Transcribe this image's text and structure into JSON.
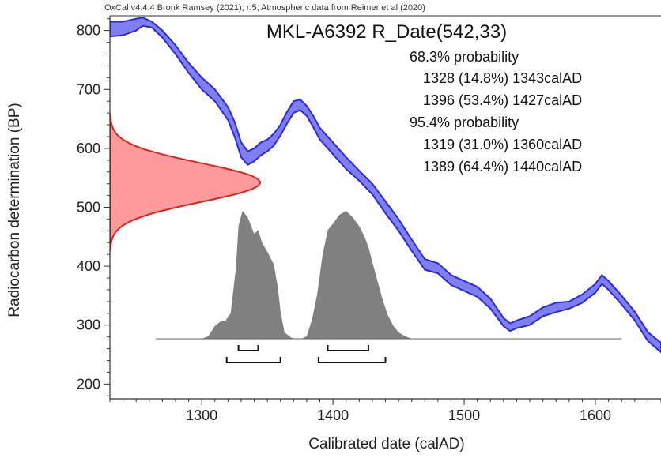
{
  "header": "OxCal v4.4.4 Bronk Ramsey (2021); r:5; Atmospheric data from Reimer et al (2020)",
  "chart_data": {
    "type": "area",
    "title": "MKL-A6392 R_Date(542,33)",
    "xlabel": "Calibrated date (calAD)",
    "ylabel": "Radiocarbon determination (BP)",
    "xlim": [
      1230,
      1650
    ],
    "ylim": [
      175,
      825
    ],
    "x_ticks": [
      1300,
      1400,
      1500,
      1600
    ],
    "y_ticks": [
      200,
      300,
      400,
      500,
      600,
      700,
      800
    ],
    "grid": false,
    "results": {
      "p68_label": "68.3% probability",
      "p68": [
        "1328 (14.8%) 1343calAD",
        "1396 (53.4%) 1427calAD"
      ],
      "p95_label": "95.4% probability",
      "p95": [
        "1319 (31.0%) 1360calAD",
        "1389 (64.4%) 1440calAD"
      ]
    },
    "calibration_curve": {
      "colors": {
        "fill": "#7f7ff2",
        "stroke": "#2b2bd6"
      },
      "x": [
        1230,
        1240,
        1250,
        1255,
        1262,
        1270,
        1280,
        1290,
        1300,
        1310,
        1320,
        1325,
        1330,
        1335,
        1340,
        1345,
        1350,
        1355,
        1360,
        1365,
        1370,
        1375,
        1380,
        1385,
        1390,
        1400,
        1410,
        1420,
        1430,
        1440,
        1450,
        1460,
        1470,
        1480,
        1490,
        1500,
        1510,
        1520,
        1530,
        1535,
        1540,
        1550,
        1560,
        1570,
        1580,
        1590,
        1600,
        1605,
        1610,
        1620,
        1630,
        1640,
        1650
      ],
      "upper": [
        815,
        815,
        820,
        822,
        815,
        800,
        775,
        745,
        720,
        700,
        670,
        645,
        610,
        595,
        600,
        610,
        615,
        625,
        640,
        662,
        680,
        683,
        672,
        655,
        635,
        610,
        585,
        562,
        540,
        510,
        480,
        445,
        412,
        405,
        385,
        375,
        365,
        345,
        312,
        303,
        308,
        315,
        330,
        338,
        340,
        352,
        370,
        385,
        375,
        350,
        323,
        288,
        270
      ],
      "lower": [
        790,
        792,
        800,
        808,
        805,
        788,
        760,
        728,
        700,
        680,
        648,
        620,
        585,
        572,
        578,
        588,
        595,
        605,
        622,
        642,
        660,
        665,
        655,
        636,
        615,
        590,
        565,
        545,
        522,
        490,
        460,
        426,
        394,
        388,
        368,
        358,
        348,
        328,
        298,
        290,
        295,
        300,
        315,
        322,
        328,
        338,
        355,
        370,
        360,
        335,
        308,
        273,
        254
      ]
    },
    "radiocarbon_date": {
      "mean_bp": 542,
      "sigma_bp": 33,
      "colors": {
        "fill": "#ff9b9b",
        "stroke": "#e02222"
      }
    },
    "posterior": {
      "color": "#808080",
      "x": [
        1265,
        1280,
        1290,
        1300,
        1305,
        1310,
        1315,
        1318,
        1322,
        1326,
        1328,
        1331,
        1335,
        1340,
        1343,
        1346,
        1350,
        1355,
        1358,
        1360,
        1363,
        1368,
        1372,
        1376,
        1380,
        1384,
        1388,
        1392,
        1396,
        1400,
        1405,
        1410,
        1415,
        1420,
        1424,
        1427,
        1430,
        1434,
        1438,
        1442,
        1446,
        1450,
        1455,
        1460,
        1470,
        1500,
        1560,
        1620
      ],
      "density": [
        0,
        0,
        0,
        0,
        0.02,
        0.1,
        0.14,
        0.14,
        0.2,
        0.55,
        0.88,
        1.0,
        0.95,
        0.82,
        0.85,
        0.75,
        0.68,
        0.58,
        0.4,
        0.22,
        0.05,
        0.01,
        0,
        0,
        0.02,
        0.15,
        0.35,
        0.65,
        0.85,
        0.9,
        0.97,
        1.0,
        0.95,
        0.88,
        0.8,
        0.72,
        0.6,
        0.45,
        0.3,
        0.18,
        0.1,
        0.05,
        0.02,
        0,
        0,
        0,
        0,
        0
      ]
    },
    "ranges_68": [
      [
        1328,
        1343
      ],
      [
        1396,
        1427
      ]
    ],
    "ranges_95": [
      [
        1319,
        1360
      ],
      [
        1389,
        1440
      ]
    ]
  }
}
